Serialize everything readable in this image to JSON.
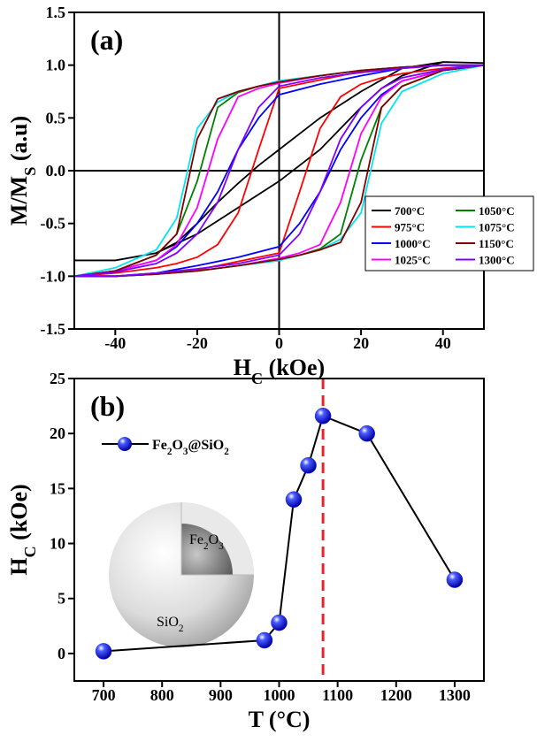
{
  "chart_data": [
    {
      "type": "line",
      "panel_label": "(a)",
      "xlabel": [
        "H",
        "C",
        " (kOe)"
      ],
      "ylabel": [
        "M/M",
        "S",
        " (a.u)"
      ],
      "xlim": [
        -50,
        50
      ],
      "ylim": [
        -1.5,
        1.5
      ],
      "xticks": [
        -40,
        -20,
        0,
        20,
        40
      ],
      "yticks": [
        -1.5,
        {
          "value": -1,
          "label": "-1.0"
        },
        -0.5,
        {
          "value": 0,
          "label": "0.0"
        },
        0.5,
        {
          "value": 1,
          "label": "1.0"
        },
        1.5
      ],
      "zero_lines": true,
      "legend": "lower right",
      "legend_columns": 2,
      "x": [
        50,
        40,
        30,
        20,
        10,
        0,
        -5,
        -10,
        -15,
        -20,
        -25,
        -30,
        -40,
        -50,
        -50,
        -40,
        -30,
        -20,
        -10,
        0,
        5,
        10,
        15,
        20,
        25,
        30,
        40,
        50
      ],
      "series": [
        {
          "name": "700°C",
          "color": "#000000",
          "values": [
            1.02,
            1.03,
            0.97,
            0.75,
            0.5,
            0.2,
            0.05,
            -0.12,
            -0.3,
            -0.5,
            -0.68,
            -0.78,
            -0.85,
            -0.85,
            -0.85,
            -0.85,
            -0.78,
            -0.6,
            -0.35,
            -0.1,
            0.05,
            0.2,
            0.4,
            0.6,
            0.78,
            0.9,
            1.03,
            1.02
          ]
        },
        {
          "name": "975°C",
          "color": "#ff0000",
          "values": [
            1.0,
            1.0,
            0.98,
            0.94,
            0.86,
            0.78,
            0.2,
            -0.4,
            -0.7,
            -0.82,
            -0.88,
            -0.92,
            -0.97,
            -1.0,
            -1.0,
            -1.0,
            -0.98,
            -0.94,
            -0.86,
            -0.78,
            -0.2,
            0.4,
            0.7,
            0.82,
            0.88,
            0.92,
            0.97,
            1.0
          ]
        },
        {
          "name": "1000°C",
          "color": "#0000ff",
          "values": [
            1.0,
            1.0,
            0.97,
            0.9,
            0.82,
            0.72,
            0.5,
            0.2,
            -0.2,
            -0.5,
            -0.72,
            -0.85,
            -0.95,
            -1.0,
            -1.0,
            -1.0,
            -0.97,
            -0.9,
            -0.82,
            -0.72,
            -0.5,
            -0.2,
            0.2,
            0.5,
            0.72,
            0.85,
            0.95,
            1.0
          ]
        },
        {
          "name": "1025°C",
          "color": "#ff00ff",
          "values": [
            1.0,
            1.0,
            0.98,
            0.95,
            0.9,
            0.83,
            0.78,
            0.7,
            0.3,
            -0.35,
            -0.7,
            -0.85,
            -0.95,
            -1.0,
            -1.0,
            -1.0,
            -0.98,
            -0.95,
            -0.9,
            -0.83,
            -0.78,
            -0.7,
            -0.3,
            0.35,
            0.7,
            0.85,
            0.95,
            1.0
          ]
        },
        {
          "name": "1050°C",
          "color": "#008000",
          "values": [
            1.0,
            1.0,
            0.98,
            0.95,
            0.9,
            0.85,
            0.8,
            0.74,
            0.6,
            -0.1,
            -0.6,
            -0.8,
            -0.95,
            -1.0,
            -1.0,
            -1.0,
            -0.98,
            -0.95,
            -0.9,
            -0.85,
            -0.8,
            -0.74,
            -0.6,
            0.1,
            0.6,
            0.8,
            0.95,
            1.0
          ]
        },
        {
          "name": "1075°C",
          "color": "#00e5ee",
          "values": [
            1.0,
            1.0,
            0.98,
            0.95,
            0.9,
            0.85,
            0.8,
            0.75,
            0.65,
            0.4,
            -0.45,
            -0.75,
            -0.92,
            -1.0,
            -1.0,
            -1.0,
            -0.98,
            -0.95,
            -0.9,
            -0.85,
            -0.8,
            -0.75,
            -0.65,
            -0.4,
            0.45,
            0.75,
            0.92,
            1.0
          ]
        },
        {
          "name": "1150°C",
          "color": "#800000",
          "values": [
            1.0,
            1.0,
            0.98,
            0.95,
            0.9,
            0.84,
            0.8,
            0.75,
            0.68,
            0.3,
            -0.6,
            -0.8,
            -0.95,
            -1.0,
            -1.0,
            -1.0,
            -0.98,
            -0.95,
            -0.9,
            -0.84,
            -0.8,
            -0.75,
            -0.68,
            -0.3,
            0.6,
            0.8,
            0.95,
            1.0
          ]
        },
        {
          "name": "1300°C",
          "color": "#8000ff",
          "values": [
            1.0,
            1.0,
            0.97,
            0.93,
            0.88,
            0.8,
            0.6,
            0.2,
            -0.3,
            -0.6,
            -0.78,
            -0.88,
            -0.96,
            -1.0,
            -1.0,
            -1.0,
            -0.97,
            -0.93,
            -0.88,
            -0.8,
            -0.6,
            -0.2,
            0.3,
            0.6,
            0.78,
            0.88,
            0.96,
            1.0
          ]
        }
      ]
    },
    {
      "type": "line",
      "panel_label": "(b)",
      "marker": "sphere",
      "xlabel": "T (°C)",
      "ylabel": [
        "H",
        "C",
        " (kOe)"
      ],
      "xlim": [
        650,
        1350
      ],
      "ylim": [
        -2.5,
        25
      ],
      "xticks": [
        700,
        800,
        900,
        1000,
        1100,
        1200,
        1300
      ],
      "yticks": [
        0,
        5,
        10,
        15,
        20,
        25
      ],
      "x": [
        700,
        975,
        1000,
        1025,
        1050,
        1075,
        1150,
        1300
      ],
      "series": [
        {
          "name": [
            "Fe",
            "2",
            "O",
            "3",
            "@SiO",
            "2"
          ],
          "color": "#000000",
          "marker_color": "#1a1aff",
          "values": [
            0.2,
            1.2,
            2.8,
            14,
            17.1,
            21.6,
            20,
            6.7
          ]
        }
      ],
      "vline": {
        "x": 1075,
        "color": "#e8232a"
      },
      "inset": {
        "core_label": [
          "Fe",
          "2",
          "O",
          "3"
        ],
        "shell_label": [
          "SiO",
          "2"
        ]
      }
    }
  ]
}
